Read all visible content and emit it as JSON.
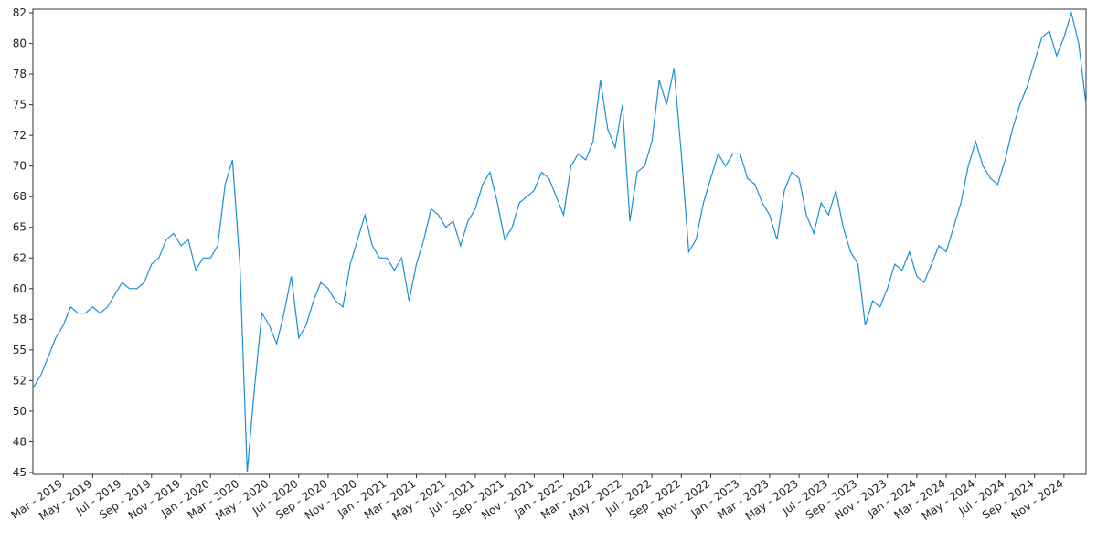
{
  "chart_data": {
    "type": "line",
    "categories": [
      null,
      null,
      null,
      null,
      "Mar - 2019",
      null,
      null,
      null,
      "May - 2019",
      null,
      null,
      null,
      "Jul - 2019",
      null,
      null,
      null,
      "Sep - 2019",
      null,
      null,
      null,
      "Nov - 2019",
      null,
      null,
      null,
      "Jan - 2020",
      null,
      null,
      null,
      "Mar - 2020",
      null,
      null,
      null,
      "May - 2020",
      null,
      null,
      null,
      "Jul - 2020",
      null,
      null,
      null,
      "Sep - 2020",
      null,
      null,
      null,
      "Nov - 2020",
      null,
      null,
      null,
      "Jan - 2021",
      null,
      null,
      null,
      "Mar - 2021",
      null,
      null,
      null,
      "May - 2021",
      null,
      null,
      null,
      "Jul - 2021",
      null,
      null,
      null,
      "Sep - 2021",
      null,
      null,
      null,
      "Nov - 2021",
      null,
      null,
      null,
      "Jan - 2022",
      null,
      null,
      null,
      "Mar - 2022",
      null,
      null,
      null,
      "May - 2022",
      null,
      null,
      null,
      "Jul - 2022",
      null,
      null,
      null,
      "Sep - 2022",
      null,
      null,
      null,
      "Nov - 2022",
      null,
      null,
      null,
      "Jan - 2023",
      null,
      null,
      null,
      "Mar - 2023",
      null,
      null,
      null,
      "May - 2023",
      null,
      null,
      null,
      "Jul - 2023",
      null,
      null,
      null,
      "Sep - 2023",
      null,
      null,
      null,
      "Nov - 2023",
      null,
      null,
      null,
      "Jan - 2024",
      null,
      null,
      null,
      "Mar - 2024",
      null,
      null,
      null,
      "May - 2024",
      null,
      null,
      null,
      "Jul - 2024",
      null,
      null,
      null,
      "Sep - 2024",
      null,
      null,
      null,
      "Nov - 2024",
      null,
      null,
      null
    ],
    "values": [
      52,
      53,
      54.5,
      56,
      57,
      58.5,
      58,
      58,
      58.5,
      58,
      58.5,
      59.5,
      60.5,
      60,
      60,
      60.5,
      62,
      62.5,
      64,
      64.5,
      63.5,
      64,
      61.5,
      62.5,
      62.5,
      63.5,
      68.5,
      70.5,
      62,
      45,
      52,
      58,
      57,
      55.5,
      58,
      61,
      56,
      57,
      59,
      60.5,
      60,
      59,
      58.5,
      62,
      64,
      66,
      63.5,
      62.5,
      62.5,
      61.5,
      62.5,
      59,
      62,
      64,
      66.5,
      66,
      65,
      65.5,
      63.5,
      65.5,
      66.5,
      68.5,
      69.5,
      67,
      64,
      65,
      67,
      67.5,
      68,
      69.5,
      69,
      67.5,
      66,
      70,
      71,
      70.5,
      72,
      77,
      73,
      71.5,
      75,
      65.5,
      69.5,
      70,
      72,
      77,
      75,
      78,
      71,
      63,
      64,
      67,
      69,
      71,
      70,
      71,
      71,
      69,
      68.5,
      67,
      66,
      64,
      68,
      69.5,
      69,
      66,
      64.5,
      67,
      66,
      68,
      65,
      63,
      62,
      57,
      59,
      58.5,
      60,
      62,
      61.5,
      63,
      61,
      60.5,
      62,
      63.5,
      63,
      65,
      67,
      70,
      72,
      70,
      69,
      68.5,
      70.5,
      73,
      75,
      76.5,
      78.5,
      80.5,
      81,
      79,
      80.5,
      82.5,
      80,
      75
    ],
    "color": "#1a8fd4",
    "ylim": [
      44.85,
      82.8
    ],
    "yticks": [
      45,
      {
        "value": 47.5,
        "label": "48"
      },
      50,
      {
        "value": 52.5,
        "label": "52"
      },
      55,
      {
        "value": 57.5,
        "label": "58"
      },
      60,
      {
        "value": 62.5,
        "label": "62"
      },
      65,
      {
        "value": 67.5,
        "label": "68"
      },
      70,
      {
        "value": 72.5,
        "label": "72"
      },
      75,
      {
        "value": 77.5,
        "label": "78"
      },
      80,
      {
        "value": 82.5,
        "label": "82"
      }
    ]
  }
}
